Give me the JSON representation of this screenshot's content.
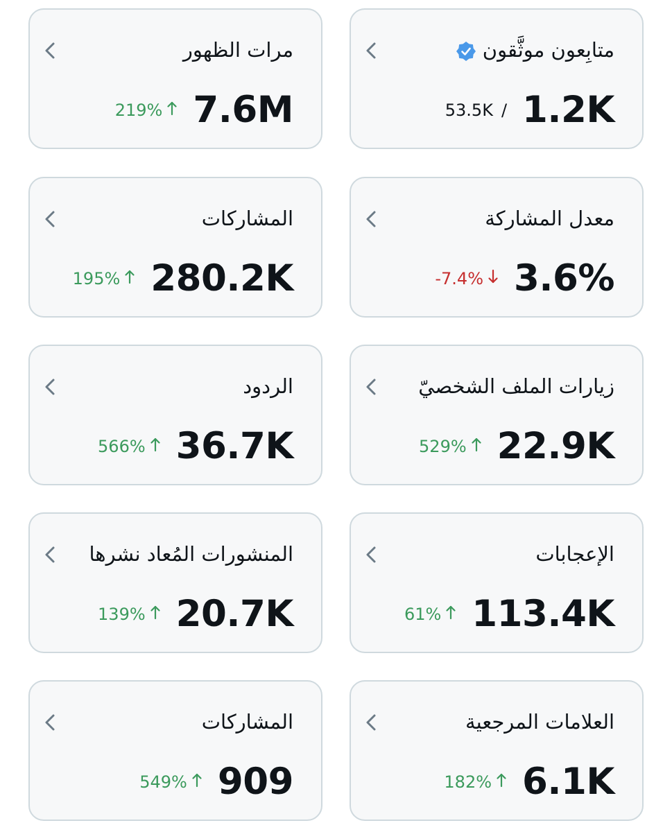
{
  "cards": [
    {
      "title": "متابِعون موثَّقون",
      "value": "1.2K",
      "secondary": "53.5K",
      "separator": "/",
      "verified_badge": true
    },
    {
      "title": "مرات الظهور",
      "value": "7.6M",
      "change": "219%",
      "trend": "up"
    },
    {
      "title": "معدل المشاركة",
      "value": "3.6%",
      "change": "-7.4%",
      "trend": "down"
    },
    {
      "title": "المشاركات",
      "value": "280.2K",
      "change": "195%",
      "trend": "up"
    },
    {
      "title": "زيارات الملف الشخصيّ",
      "value": "22.9K",
      "change": "529%",
      "trend": "up"
    },
    {
      "title": "الردود",
      "value": "36.7K",
      "change": "566%",
      "trend": "up"
    },
    {
      "title": "الإعجابات",
      "value": "113.4K",
      "change": "61%",
      "trend": "up"
    },
    {
      "title": "المنشورات المُعاد نشرها",
      "value": "20.7K",
      "change": "139%",
      "trend": "up"
    },
    {
      "title": "العلامات المرجعية",
      "value": "6.1K",
      "change": "182%",
      "trend": "up"
    },
    {
      "title": "المشاركات",
      "value": "909",
      "change": "549%",
      "trend": "up"
    }
  ],
  "icons": {
    "chevron": "chevron-left-icon",
    "verified": "verified-badge-icon",
    "up": "arrow-up-icon",
    "down": "arrow-down-icon"
  },
  "colors": {
    "positive": "#3b9a5c",
    "negative": "#c62f2f",
    "verified": "#4a99e9"
  }
}
